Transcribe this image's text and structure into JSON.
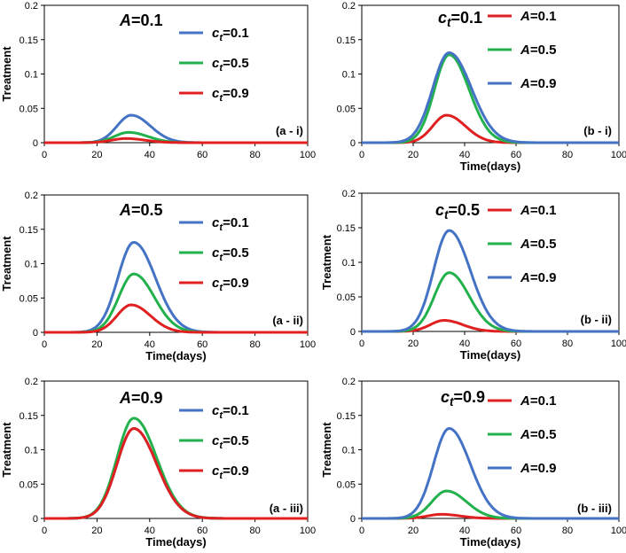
{
  "colors": {
    "blue": "#4472C4",
    "green": "#22B14C",
    "red": "#E02020"
  },
  "chart_data": [
    {
      "type": "line",
      "ylabel": "Treatment",
      "xlabel": "",
      "panel_label": "(a - i)",
      "title": {
        "var": "A",
        "value": "=0.1"
      },
      "xlim": [
        0,
        100
      ],
      "ylim": [
        0,
        0.2
      ],
      "xticks": [
        "0",
        "20",
        "40",
        "60",
        "80",
        "100"
      ],
      "yticks": [
        "0",
        "0.05",
        "0.1",
        "0.15",
        "0.2"
      ],
      "series": [
        {
          "var": "c",
          "sub": "t",
          "value": "=0.1",
          "color": "blue",
          "peak": 0.04,
          "peak_day": 33,
          "width": 8
        },
        {
          "var": "c",
          "sub": "t",
          "value": "=0.5",
          "color": "green",
          "peak": 0.015,
          "peak_day": 32,
          "width": 8
        },
        {
          "var": "c",
          "sub": "t",
          "value": "=0.9",
          "color": "red",
          "peak": 0.006,
          "peak_day": 31,
          "width": 8
        }
      ]
    },
    {
      "type": "line",
      "ylabel": "",
      "xlabel": "Time(days)",
      "panel_label": "(b - i)",
      "title": {
        "var": "c",
        "sub": "t",
        "value": "=0.1"
      },
      "xlim": [
        0,
        100
      ],
      "ylim": [
        0,
        0.2
      ],
      "xticks": [
        "0",
        "20",
        "40",
        "60",
        "80",
        "100"
      ],
      "yticks": [
        "0",
        "0.05",
        "0.1",
        "0.15",
        "0.2"
      ],
      "series": [
        {
          "var": "A",
          "sub": "",
          "value": "=0.1",
          "color": "red",
          "peak": 0.04,
          "peak_day": 33,
          "width": 8
        },
        {
          "var": "A",
          "sub": "",
          "value": "=0.5",
          "color": "green",
          "peak": 0.128,
          "peak_day": 34,
          "width": 8.5
        },
        {
          "var": "A",
          "sub": "",
          "value": "=0.9",
          "color": "blue",
          "peak": 0.131,
          "peak_day": 34,
          "width": 9.5
        }
      ]
    },
    {
      "type": "line",
      "ylabel": "Treatment",
      "xlabel": "Time(days)",
      "panel_label": "(a - ii)",
      "title": {
        "var": "A",
        "value": "=0.5"
      },
      "xlim": [
        0,
        100
      ],
      "ylim": [
        0,
        0.2
      ],
      "xticks": [
        "0",
        "20",
        "40",
        "60",
        "80",
        "100"
      ],
      "yticks": [
        "0",
        "0.05",
        "0.1",
        "0.15",
        "0.2"
      ],
      "series": [
        {
          "var": "c",
          "sub": "t",
          "value": "=0.1",
          "color": "blue",
          "peak": 0.131,
          "peak_day": 34,
          "width": 9
        },
        {
          "var": "c",
          "sub": "t",
          "value": "=0.5",
          "color": "green",
          "peak": 0.085,
          "peak_day": 34,
          "width": 8.5
        },
        {
          "var": "c",
          "sub": "t",
          "value": "=0.9",
          "color": "red",
          "peak": 0.04,
          "peak_day": 33,
          "width": 8
        }
      ]
    },
    {
      "type": "line",
      "ylabel": "Treatment",
      "xlabel": "Time(days)",
      "panel_label": "(b - ii)",
      "title": {
        "var": "c",
        "sub": "t",
        "value": "=0.5"
      },
      "xlim": [
        0,
        100
      ],
      "ylim": [
        0,
        0.2
      ],
      "xticks": [
        "0",
        "20",
        "40",
        "60",
        "80",
        "100"
      ],
      "yticks": [
        "0",
        "0.05",
        "0.1",
        "0.15",
        "0.2"
      ],
      "series": [
        {
          "var": "A",
          "sub": "",
          "value": "=0.1",
          "color": "red",
          "peak": 0.016,
          "peak_day": 32,
          "width": 8
        },
        {
          "var": "A",
          "sub": "",
          "value": "=0.5",
          "color": "green",
          "peak": 0.085,
          "peak_day": 34,
          "width": 8.5
        },
        {
          "var": "A",
          "sub": "",
          "value": "=0.9",
          "color": "blue",
          "peak": 0.146,
          "peak_day": 34,
          "width": 9
        }
      ]
    },
    {
      "type": "line",
      "ylabel": "Treatment",
      "xlabel": "Time(days)",
      "panel_label": "(a - iii)",
      "title": {
        "var": "A",
        "value": "=0.9"
      },
      "xlim": [
        0,
        100
      ],
      "ylim": [
        0,
        0.2
      ],
      "xticks": [
        "0",
        "20",
        "40",
        "60",
        "80",
        "100"
      ],
      "yticks": [
        "0",
        "0.05",
        "0.1",
        "0.15",
        "0.2"
      ],
      "series": [
        {
          "var": "c",
          "sub": "t",
          "value": "=0.1",
          "color": "blue",
          "peak": 0.131,
          "peak_day": 34,
          "width": 9.5
        },
        {
          "var": "c",
          "sub": "t",
          "value": "=0.5",
          "color": "green",
          "peak": 0.146,
          "peak_day": 34,
          "width": 9.5
        },
        {
          "var": "c",
          "sub": "t",
          "value": "=0.9",
          "color": "red",
          "peak": 0.131,
          "peak_day": 34,
          "width": 9.5
        }
      ]
    },
    {
      "type": "line",
      "ylabel": "Treatment",
      "xlabel": "Time(days)",
      "panel_label": "(b - iii)",
      "title": {
        "var": "c",
        "sub": "t",
        "value": "=0.9"
      },
      "xlim": [
        0,
        100
      ],
      "ylim": [
        0,
        0.2
      ],
      "xticks": [
        "0",
        "20",
        "40",
        "60",
        "80",
        "100"
      ],
      "yticks": [
        "0",
        "0.05",
        "0.1",
        "0.15",
        "0.2"
      ],
      "series": [
        {
          "var": "A",
          "sub": "",
          "value": "=0.1",
          "color": "red",
          "peak": 0.006,
          "peak_day": 31,
          "width": 8
        },
        {
          "var": "A",
          "sub": "",
          "value": "=0.5",
          "color": "green",
          "peak": 0.04,
          "peak_day": 33,
          "width": 8.5
        },
        {
          "var": "A",
          "sub": "",
          "value": "=0.9",
          "color": "blue",
          "peak": 0.131,
          "peak_day": 34,
          "width": 9
        }
      ]
    }
  ]
}
